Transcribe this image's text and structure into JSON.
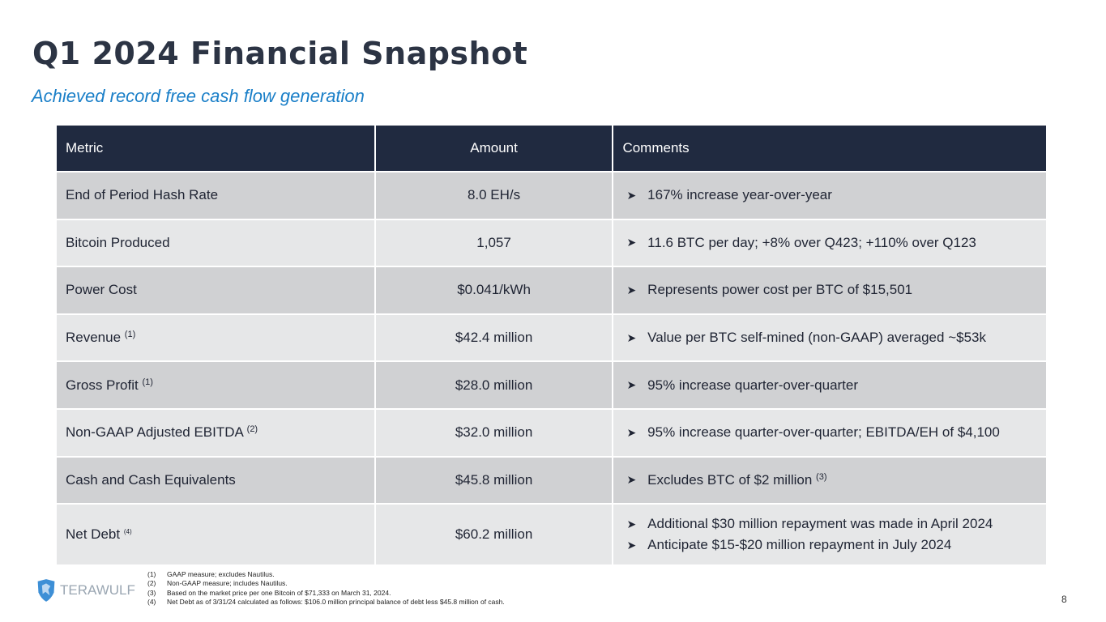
{
  "title": "Q1 2024 Financial Snapshot",
  "subtitle": "Achieved record free cash flow generation",
  "table": {
    "headers": [
      "Metric",
      "Amount",
      "Comments"
    ],
    "rows": [
      {
        "metric": "End of Period Hash Rate",
        "note": "",
        "amount": "8.0 EH/s",
        "comments": [
          "167% increase year-over-year"
        ]
      },
      {
        "metric": "Bitcoin Produced",
        "note": "",
        "amount": "1,057",
        "comments": [
          "11.6 BTC per day; +8% over Q423; +110% over Q123"
        ]
      },
      {
        "metric": "Power Cost",
        "note": "",
        "amount": "$0.041/kWh",
        "comments": [
          "Represents power cost per BTC of $15,501"
        ]
      },
      {
        "metric": "Revenue",
        "note": "(1)",
        "amount": "$42.4 million",
        "comments": [
          "Value per BTC self-mined (non-GAAP) averaged ~$53k"
        ]
      },
      {
        "metric": "Gross Profit",
        "note": "(1)",
        "amount": "$28.0 million",
        "comments": [
          "95% increase quarter-over-quarter"
        ]
      },
      {
        "metric": "Non-GAAP Adjusted EBITDA",
        "note": "(2)",
        "amount": "$32.0 million",
        "comments": [
          "95% increase quarter-over-quarter; EBITDA/EH of $4,100"
        ]
      },
      {
        "metric": "Cash and Cash Equivalents",
        "note": "",
        "amount": "$45.8 million",
        "comments": [
          "Excludes BTC of $2 million"
        ],
        "comment_note": "(3)"
      },
      {
        "metric": "Net Debt",
        "note": "(4)",
        "amount": "$60.2 million",
        "comments": [
          "Additional $30 million repayment was made in April 2024",
          "Anticipate $15-$20 million repayment in July 2024"
        ]
      }
    ]
  },
  "footnotes": [
    {
      "n": "(1)",
      "text": "GAAP measure; excludes Nautilus."
    },
    {
      "n": "(2)",
      "text": "Non-GAAP measure; includes Nautilus."
    },
    {
      "n": "(3)",
      "text": "Based on the market price per one Bitcoin of $71,333 on March 31, 2024."
    },
    {
      "n": "(4)",
      "text": "Net Debt as of 3/31/24 calculated as follows: $106.0 million principal balance of debt less $45.8 million of cash."
    }
  ],
  "logo": "TERAWULF",
  "page_number": "8"
}
